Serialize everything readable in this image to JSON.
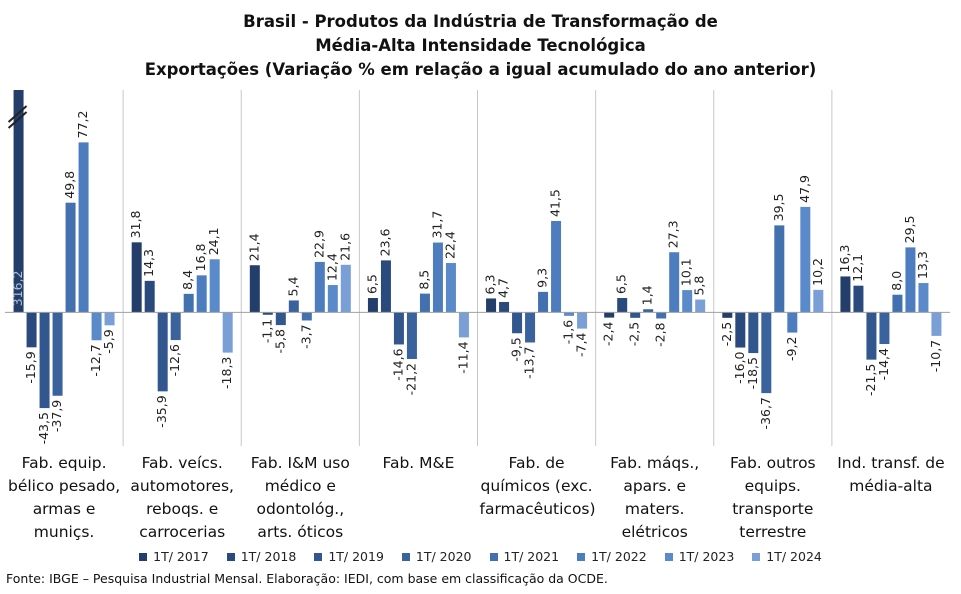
{
  "chart_data": {
    "type": "bar",
    "title": "Brasil - Produtos da Indústria de Transformação de Média-Alta Intensidade Tecnológica",
    "subtitle": "Exportações (Variação % em relação a igual acumulado do ano anterior)",
    "categories": [
      "Fab. equip. bélico pesado, armas e muniçs.",
      "Fab. veícs. automotores, reboqs. e carrocerias",
      "Fab. I&M uso médico e odontológ., arts. óticos",
      "Fab. M&E",
      "Fab. de químicos (exc. farmacêuticos)",
      "Fab. máqs., apars. e maters. elétricos",
      "Fab. outros equips. transporte terrestre",
      "Ind. transf. de média-alta"
    ],
    "series": [
      {
        "name": "1T/ 2017",
        "color": "#233e6a",
        "values": [
          316.2,
          31.8,
          21.4,
          6.5,
          6.3,
          -2.4,
          -2.5,
          16.3
        ],
        "value_labels": [
          "316,2",
          "31,8",
          "21,4",
          "6,5",
          "6,3",
          "-2,4",
          "-2,5",
          "16,3"
        ]
      },
      {
        "name": "1T/ 2018",
        "color": "#2a4a7d",
        "values": [
          -15.9,
          14.3,
          -1.1,
          23.6,
          4.7,
          6.5,
          -16.0,
          12.1
        ],
        "value_labels": [
          "-15,9",
          "14,3",
          "-1,1",
          "23,6",
          "4,7",
          "6,5",
          "-16,0",
          "12,1"
        ]
      },
      {
        "name": "1T/ 2019",
        "color": "#32578e",
        "values": [
          -43.5,
          -35.9,
          -5.8,
          -14.6,
          -9.5,
          -2.5,
          -18.5,
          -21.5
        ],
        "value_labels": [
          "-43,5",
          "-35,9",
          "-5,8",
          "-14,6",
          "-9,5",
          "-2,5",
          "-18,5",
          "-21,5"
        ]
      },
      {
        "name": "1T/ 2020",
        "color": "#3a639e",
        "values": [
          -37.9,
          -12.6,
          5.4,
          -21.2,
          -13.7,
          1.4,
          -36.7,
          -14.4
        ],
        "value_labels": [
          "-37,9",
          "-12,6",
          "5,4",
          "-21,2",
          "-13,7",
          "1,4",
          "-36,7",
          "-14,4"
        ]
      },
      {
        "name": "1T/ 2021",
        "color": "#4370ae",
        "values": [
          49.8,
          8.4,
          -3.7,
          8.5,
          9.3,
          -2.8,
          39.5,
          8.0
        ],
        "value_labels": [
          "49,8",
          "8,4",
          "-3,7",
          "8,5",
          "9,3",
          "-2,8",
          "39,5",
          "8,0"
        ]
      },
      {
        "name": "1T/ 2022",
        "color": "#4d7dbe",
        "values": [
          77.2,
          16.8,
          22.9,
          31.7,
          41.5,
          27.3,
          -9.2,
          29.5
        ],
        "value_labels": [
          "77,2",
          "16,8",
          "22,9",
          "31,7",
          "41,5",
          "27,3",
          "-9,2",
          "29,5"
        ]
      },
      {
        "name": "1T/ 2023",
        "color": "#5b8acb",
        "values": [
          -12.7,
          24.1,
          12.4,
          22.4,
          -1.6,
          10.1,
          47.9,
          13.3
        ],
        "value_labels": [
          "-12,7",
          "24,1",
          "12,4",
          "22,4",
          "-1,6",
          "10,1",
          "47,9",
          "13,3"
        ]
      },
      {
        "name": "1T/ 2024",
        "color": "#799fd6",
        "values": [
          -5.9,
          -18.3,
          21.6,
          -11.4,
          -7.4,
          5.8,
          10.2,
          -10.7
        ],
        "value_labels": [
          "-5,9",
          "-18,3",
          "21,6",
          "-11,4",
          "-7,4",
          "5,8",
          "10,2",
          "-10,7"
        ]
      }
    ],
    "ylim": [
      -58,
      101
    ],
    "source": "Fonte: IBGE – Pesquisa Industrial Mensal. Elaboração: IEDI, com base em classificação da OCDE."
  }
}
